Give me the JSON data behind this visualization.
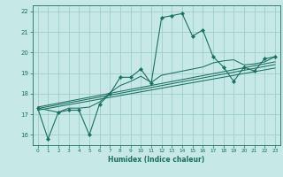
{
  "title": "",
  "xlabel": "Humidex (Indice chaleur)",
  "xlim": [
    -0.5,
    23.5
  ],
  "ylim": [
    15.5,
    22.3
  ],
  "xticks": [
    0,
    1,
    2,
    3,
    4,
    5,
    6,
    7,
    8,
    9,
    10,
    11,
    12,
    13,
    14,
    15,
    16,
    17,
    18,
    19,
    20,
    21,
    22,
    23
  ],
  "yticks": [
    16,
    17,
    18,
    19,
    20,
    21,
    22
  ],
  "background_color": "#c6e8e6",
  "grid_color": "#9ecece",
  "line_color": "#1a7060",
  "lines": [
    {
      "x": [
        0,
        1,
        2,
        3,
        4,
        5,
        6,
        7,
        8,
        9,
        10,
        11,
        12,
        13,
        14,
        15,
        16,
        17,
        18,
        19,
        20,
        21,
        22,
        23
      ],
      "y": [
        17.3,
        15.8,
        17.1,
        17.2,
        17.2,
        16.0,
        17.5,
        18.0,
        18.8,
        18.8,
        19.2,
        18.5,
        21.7,
        21.8,
        21.9,
        20.8,
        21.1,
        19.8,
        19.3,
        18.6,
        19.3,
        19.1,
        19.7,
        19.8
      ],
      "marker": true,
      "linestyle": "-"
    },
    {
      "x": [
        0,
        2,
        3,
        4,
        5,
        6,
        7,
        8,
        9,
        10,
        11,
        12,
        13,
        14,
        15,
        16,
        17,
        18,
        19,
        20,
        21,
        22,
        23
      ],
      "y": [
        17.3,
        17.1,
        17.3,
        17.3,
        17.35,
        17.6,
        18.05,
        18.4,
        18.6,
        18.85,
        18.55,
        18.9,
        19.0,
        19.1,
        19.2,
        19.3,
        19.5,
        19.6,
        19.65,
        19.4,
        19.45,
        19.55,
        19.8
      ],
      "marker": false,
      "linestyle": "-"
    },
    {
      "x": [
        0,
        23
      ],
      "y": [
        17.2,
        19.25
      ],
      "marker": false,
      "linestyle": "-"
    },
    {
      "x": [
        0,
        23
      ],
      "y": [
        17.35,
        19.55
      ],
      "marker": false,
      "linestyle": "-"
    },
    {
      "x": [
        0,
        23
      ],
      "y": [
        17.28,
        19.42
      ],
      "marker": false,
      "linestyle": "-"
    }
  ]
}
